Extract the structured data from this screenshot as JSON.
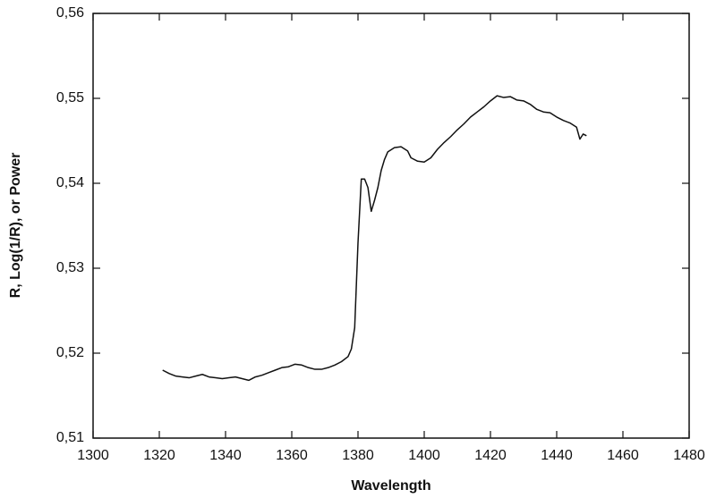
{
  "chart_data": {
    "type": "line",
    "xlabel": "Wavelength",
    "ylabel": "R, Log(1/R), or Power",
    "xlim": [
      1300,
      1480
    ],
    "xticks": [
      1300,
      1320,
      1340,
      1360,
      1380,
      1400,
      1420,
      1440,
      1460,
      1480
    ],
    "ylim": [
      0.51,
      0.56
    ],
    "yticks": [
      {
        "value": 0.51,
        "label": "0,51"
      },
      {
        "value": 0.52,
        "label": "0,52"
      },
      {
        "value": 0.53,
        "label": "0,53"
      },
      {
        "value": 0.54,
        "label": "0,54"
      },
      {
        "value": 0.55,
        "label": "0,55"
      },
      {
        "value": 0.56,
        "label": "0,56"
      }
    ],
    "color": "#111111",
    "x": [
      1321,
      1323,
      1325,
      1327,
      1329,
      1331,
      1333,
      1335,
      1337,
      1339,
      1341,
      1343,
      1345,
      1347,
      1349,
      1351,
      1353,
      1355,
      1357,
      1359,
      1361,
      1363,
      1365,
      1367,
      1369,
      1371,
      1373,
      1375,
      1377,
      1378,
      1379,
      1380,
      1381,
      1382,
      1383,
      1384,
      1385,
      1386,
      1387,
      1388,
      1389,
      1391,
      1393,
      1395,
      1396,
      1398,
      1400,
      1402,
      1404,
      1406,
      1408,
      1410,
      1412,
      1414,
      1416,
      1418,
      1420,
      1422,
      1424,
      1426,
      1428,
      1430,
      1432,
      1434,
      1436,
      1438,
      1440,
      1442,
      1444,
      1446,
      1447,
      1448,
      1449
    ],
    "values": [
      0.518,
      0.5176,
      0.5173,
      0.5172,
      0.5171,
      0.5173,
      0.5175,
      0.5172,
      0.5171,
      0.517,
      0.5171,
      0.5172,
      0.517,
      0.5168,
      0.5172,
      0.5174,
      0.5177,
      0.518,
      0.5183,
      0.5184,
      0.5187,
      0.5186,
      0.5183,
      0.5181,
      0.5181,
      0.5183,
      0.5186,
      0.519,
      0.5196,
      0.5205,
      0.523,
      0.533,
      0.5405,
      0.5405,
      0.5395,
      0.5367,
      0.538,
      0.5395,
      0.5415,
      0.5428,
      0.5437,
      0.5442,
      0.5443,
      0.5438,
      0.543,
      0.5426,
      0.5425,
      0.543,
      0.544,
      0.5448,
      0.5455,
      0.5463,
      0.547,
      0.5478,
      0.5484,
      0.549,
      0.5497,
      0.5503,
      0.5501,
      0.5502,
      0.5498,
      0.5497,
      0.5493,
      0.5487,
      0.5484,
      0.5483,
      0.5478,
      0.5474,
      0.5471,
      0.5466,
      0.5452,
      0.5458,
      0.5456
    ]
  }
}
